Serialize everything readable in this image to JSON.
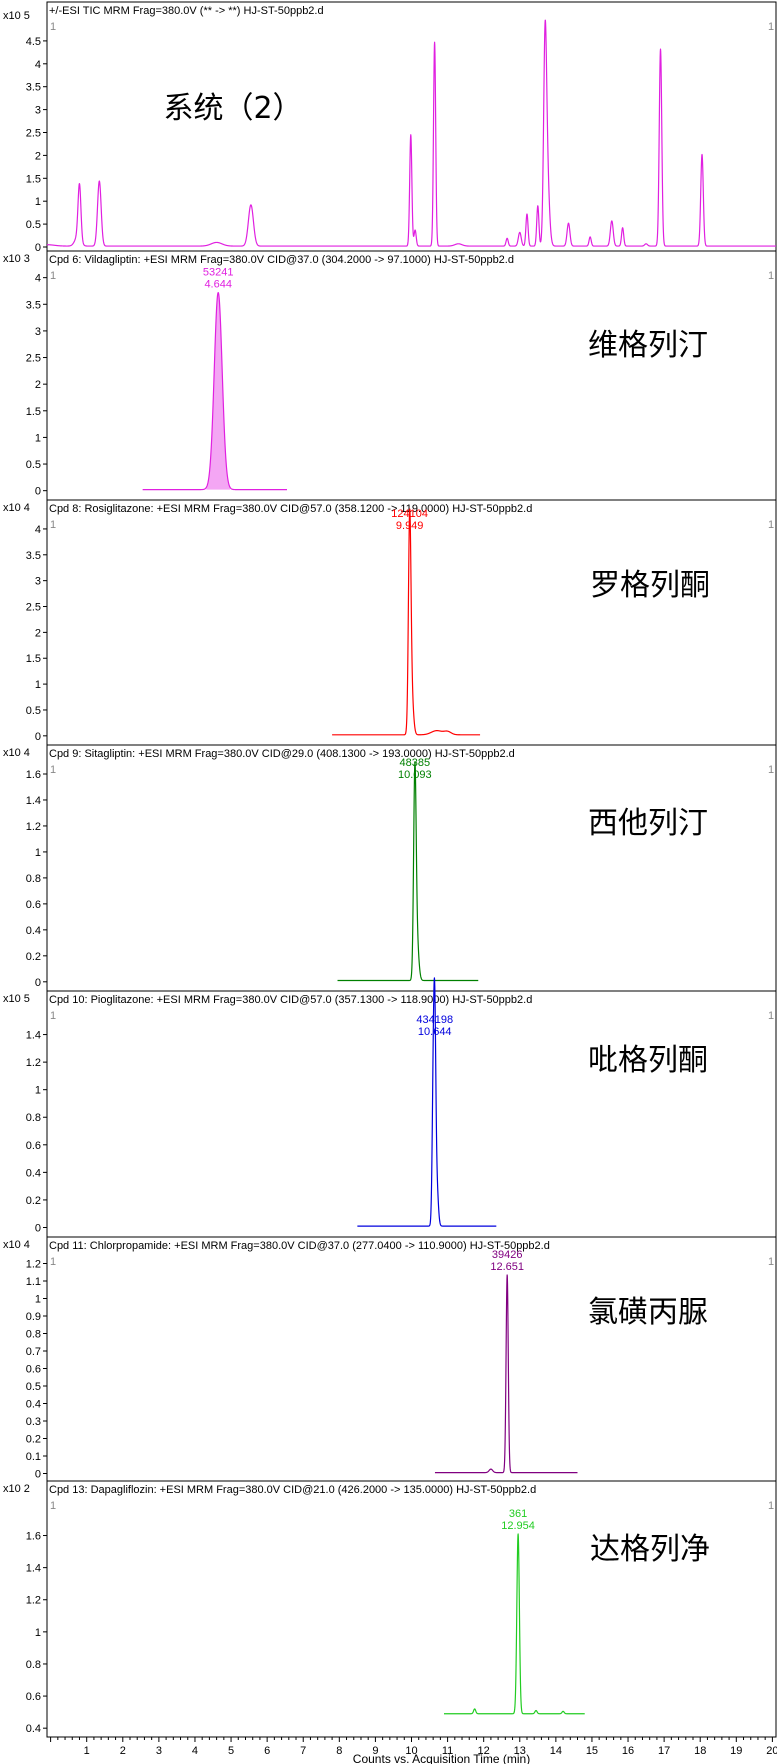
{
  "x_axis": {
    "ticks": [
      1,
      2,
      3,
      4,
      5,
      6,
      7,
      8,
      9,
      10,
      11,
      12,
      13,
      14,
      15,
      16,
      17,
      18,
      19,
      20
    ],
    "range": [
      -0.1,
      20.1
    ],
    "title": "Counts vs. Acquisition Time (min)"
  },
  "chart_data": [
    {
      "type": "line",
      "header": "+/-ESI TIC MRM Frag=380.0V (** -> **) HJ-ST-50ppb2.d",
      "scale": "x10 5",
      "corner_left": "1",
      "corner_right": "1",
      "annotation": "系统（2）",
      "color": "#e020e0",
      "ylim": [
        0,
        5.0
      ],
      "yticks": [
        {
          "v": 0,
          "t": "0"
        },
        {
          "v": 0.5,
          "t": "0.5"
        },
        {
          "v": 1,
          "t": "1"
        },
        {
          "v": 1.5,
          "t": "1.5"
        },
        {
          "v": 2,
          "t": "2"
        },
        {
          "v": 2.5,
          "t": "2.5"
        },
        {
          "v": 3,
          "t": "3"
        },
        {
          "v": 3.5,
          "t": "3.5"
        },
        {
          "v": 4,
          "t": "4"
        },
        {
          "v": 4.5,
          "t": "4.5"
        }
      ],
      "baseline": {
        "y": 0.02,
        "start": -0.1,
        "end": 20.1
      },
      "peaks": [
        {
          "t": -0.1,
          "h": 0.03,
          "w": 0.2
        },
        {
          "t": 0.8,
          "h": 1.2,
          "w": 0.04
        },
        {
          "t": 0.75,
          "h": 0.2,
          "w": 0.08
        },
        {
          "t": 1.35,
          "h": 1.42,
          "w": 0.05
        },
        {
          "t": 4.6,
          "h": 0.08,
          "w": 0.15
        },
        {
          "t": 5.55,
          "h": 0.9,
          "w": 0.07
        },
        {
          "t": 9.98,
          "h": 2.43,
          "w": 0.03
        },
        {
          "t": 10.1,
          "h": 0.35,
          "w": 0.03
        },
        {
          "t": 10.64,
          "h": 4.45,
          "w": 0.03
        },
        {
          "t": 11.3,
          "h": 0.05,
          "w": 0.1
        },
        {
          "t": 12.65,
          "h": 0.17,
          "w": 0.03
        },
        {
          "t": 13.0,
          "h": 0.3,
          "w": 0.04
        },
        {
          "t": 13.2,
          "h": 0.7,
          "w": 0.03
        },
        {
          "t": 13.5,
          "h": 0.88,
          "w": 0.03
        },
        {
          "t": 13.7,
          "h": 3.6,
          "w": 0.04
        },
        {
          "t": 13.75,
          "h": 1.8,
          "w": 0.06
        },
        {
          "t": 14.35,
          "h": 0.5,
          "w": 0.04
        },
        {
          "t": 14.95,
          "h": 0.2,
          "w": 0.03
        },
        {
          "t": 15.55,
          "h": 0.55,
          "w": 0.04
        },
        {
          "t": 15.85,
          "h": 0.4,
          "w": 0.03
        },
        {
          "t": 16.5,
          "h": 0.05,
          "w": 0.04
        },
        {
          "t": 16.9,
          "h": 4.3,
          "w": 0.035
        },
        {
          "t": 18.05,
          "h": 2.0,
          "w": 0.035
        }
      ]
    },
    {
      "type": "line",
      "header": "Cpd 6: Vildagliptin: +ESI MRM Frag=380.0V CID@37.0 (304.2000 -> 97.1000) HJ-ST-50ppb2.d",
      "scale": "x10 3",
      "corner_left": "1",
      "corner_right": "1",
      "annotation": "维格列汀",
      "color": "#e020e0",
      "fill": "#f4a6f4",
      "ylim": [
        -0.1,
        4.2
      ],
      "yticks": [
        {
          "v": 0,
          "t": "0"
        },
        {
          "v": 0.5,
          "t": "0.5"
        },
        {
          "v": 1,
          "t": "1"
        },
        {
          "v": 1.5,
          "t": "1.5"
        },
        {
          "v": 2,
          "t": "2"
        },
        {
          "v": 2.5,
          "t": "2.5"
        },
        {
          "v": 3,
          "t": "3"
        },
        {
          "v": 3.5,
          "t": "3.5"
        },
        {
          "v": 4,
          "t": "4"
        }
      ],
      "baseline": {
        "y": 0.02,
        "start": 2.55,
        "end": 6.55
      },
      "peaks": [
        {
          "t": 4.644,
          "h": 3.7,
          "w": 0.11
        }
      ],
      "peak_label": {
        "t": 4.644,
        "lines": [
          "53241",
          "4.644"
        ]
      }
    },
    {
      "type": "line",
      "header": "Cpd 8: Rosiglitazone: +ESI MRM Frag=380.0V CID@57.0 (358.1200 -> 119.0000) HJ-ST-50ppb2.d",
      "scale": "x10 4",
      "corner_left": "1",
      "corner_right": "1",
      "annotation": "罗格列酮",
      "color": "#ff0000",
      "ylim": [
        -0.1,
        4.25
      ],
      "yticks": [
        {
          "v": 0,
          "t": "0"
        },
        {
          "v": 0.5,
          "t": "0.5"
        },
        {
          "v": 1,
          "t": "1"
        },
        {
          "v": 1.5,
          "t": "1.5"
        },
        {
          "v": 2,
          "t": "2"
        },
        {
          "v": 2.5,
          "t": "2.5"
        },
        {
          "v": 3,
          "t": "3"
        },
        {
          "v": 3.5,
          "t": "3.5"
        },
        {
          "v": 4,
          "t": "4"
        }
      ],
      "baseline": {
        "y": 0.02,
        "start": 7.8,
        "end": 11.9
      },
      "peaks": [
        {
          "t": 9.949,
          "h": 3.88,
          "w": 0.035
        },
        {
          "t": 10.0,
          "h": 0.8,
          "w": 0.05
        },
        {
          "t": 10.7,
          "h": 0.08,
          "w": 0.15
        },
        {
          "t": 11.0,
          "h": 0.06,
          "w": 0.1
        }
      ],
      "peak_label": {
        "t": 9.949,
        "lines": [
          "124104",
          "9.949"
        ]
      }
    },
    {
      "type": "line",
      "header": "Cpd 9: Sitagliptin: +ESI MRM Frag=380.0V CID@29.0 (408.1300 -> 193.0000) HJ-ST-50ppb2.d",
      "scale": "x10 4",
      "corner_left": "1",
      "corner_right": "1",
      "annotation": "西他列汀",
      "color": "#008000",
      "ylim": [
        -0.04,
        1.7
      ],
      "yticks": [
        {
          "v": 0,
          "t": "0"
        },
        {
          "v": 0.2,
          "t": "0.2"
        },
        {
          "v": 0.4,
          "t": "0.4"
        },
        {
          "v": 0.6,
          "t": "0.6"
        },
        {
          "v": 0.8,
          "t": "0.8"
        },
        {
          "v": 1,
          "t": "1"
        },
        {
          "v": 1.2,
          "t": "1.2"
        },
        {
          "v": 1.4,
          "t": "1.4"
        },
        {
          "v": 1.6,
          "t": "1.6"
        }
      ],
      "baseline": {
        "y": 0.01,
        "start": 7.95,
        "end": 11.85
      },
      "peaks": [
        {
          "t": 10.093,
          "h": 1.52,
          "w": 0.035
        },
        {
          "t": 10.15,
          "h": 0.3,
          "w": 0.05
        }
      ],
      "peak_label": {
        "t": 10.093,
        "lines": [
          "48385",
          "10.093"
        ]
      }
    },
    {
      "type": "line",
      "header": "Cpd 10: Pioglitazone: +ESI MRM Frag=380.0V CID@57.0 (357.1300 -> 118.9000) HJ-ST-50ppb2.d",
      "scale": "x10 5",
      "corner_left": "1",
      "corner_right": "1",
      "annotation": "吡格列酮",
      "color": "#0000dd",
      "ylim": [
        -0.04,
        1.6
      ],
      "yticks": [
        {
          "v": 0,
          "t": "0"
        },
        {
          "v": 0.2,
          "t": "0.2"
        },
        {
          "v": 0.4,
          "t": "0.4"
        },
        {
          "v": 0.6,
          "t": "0.6"
        },
        {
          "v": 0.8,
          "t": "0.8"
        },
        {
          "v": 1,
          "t": "1"
        },
        {
          "v": 1.2,
          "t": "1.2"
        },
        {
          "v": 1.4,
          "t": "1.4"
        }
      ],
      "baseline": {
        "y": 0.01,
        "start": 8.5,
        "end": 12.35
      },
      "peaks": [
        {
          "t": 10.644,
          "h": 1.35,
          "w": 0.03
        },
        {
          "t": 10.6,
          "h": 0.85,
          "w": 0.03
        },
        {
          "t": 10.7,
          "h": 0.3,
          "w": 0.04
        }
      ],
      "peak_label": {
        "t": 10.644,
        "lines": [
          "434198",
          "10.644"
        ]
      }
    },
    {
      "type": "line",
      "header": "Cpd 11: Chlorpropamide: +ESI MRM Frag=380.0V CID@37.0 (277.0400 -> 110.9000) HJ-ST-50ppb2.d",
      "scale": "x10 4",
      "corner_left": "1",
      "corner_right": "1",
      "annotation": "氯磺丙脲",
      "color": "#800080",
      "ylim": [
        -0.02,
        1.26
      ],
      "yticks": [
        {
          "v": 0,
          "t": "0"
        },
        {
          "v": 0.1,
          "t": "0.1"
        },
        {
          "v": 0.2,
          "t": "0.2"
        },
        {
          "v": 0.3,
          "t": "0.3"
        },
        {
          "v": 0.4,
          "t": "0.4"
        },
        {
          "v": 0.5,
          "t": "0.5"
        },
        {
          "v": 0.6,
          "t": "0.6"
        },
        {
          "v": 0.7,
          "t": "0.7"
        },
        {
          "v": 0.8,
          "t": "0.8"
        },
        {
          "v": 0.9,
          "t": "0.9"
        },
        {
          "v": 1,
          "t": "1"
        },
        {
          "v": 1.1,
          "t": "1.1"
        },
        {
          "v": 1.2,
          "t": "1.2"
        }
      ],
      "baseline": {
        "y": 0.005,
        "start": 10.65,
        "end": 14.6
      },
      "peaks": [
        {
          "t": 12.651,
          "h": 1.13,
          "w": 0.03
        },
        {
          "t": 12.2,
          "h": 0.02,
          "w": 0.05
        }
      ],
      "peak_label": {
        "t": 12.651,
        "lines": [
          "39426",
          "12.651"
        ]
      }
    },
    {
      "type": "line",
      "header": "Cpd 13: Dapagliflozin: +ESI MRM Frag=380.0V CID@21.0 (426.2000 -> 135.0000) HJ-ST-50ppb2.d",
      "scale": "x10 2",
      "corner_left": "1",
      "corner_right": "1",
      "annotation": "达格列净",
      "color": "#22cc22",
      "ylim": [
        0.37,
        1.84
      ],
      "yticks": [
        {
          "v": 0.4,
          "t": "0.4"
        },
        {
          "v": 0.6,
          "t": "0.6"
        },
        {
          "v": 0.8,
          "t": "0.8"
        },
        {
          "v": 1,
          "t": "1"
        },
        {
          "v": 1.2,
          "t": "1.2"
        },
        {
          "v": 1.4,
          "t": "1.4"
        },
        {
          "v": 1.6,
          "t": "1.6"
        }
      ],
      "baseline": {
        "y": 0.49,
        "start": 10.9,
        "end": 14.8
      },
      "peaks": [
        {
          "t": 12.954,
          "h": 1.12,
          "w": 0.035
        },
        {
          "t": 11.75,
          "h": 0.03,
          "w": 0.03
        },
        {
          "t": 13.45,
          "h": 0.02,
          "w": 0.03
        },
        {
          "t": 14.2,
          "h": 0.015,
          "w": 0.03
        }
      ],
      "peak_label": {
        "t": 12.954,
        "lines": [
          "361",
          "12.954"
        ]
      }
    }
  ]
}
